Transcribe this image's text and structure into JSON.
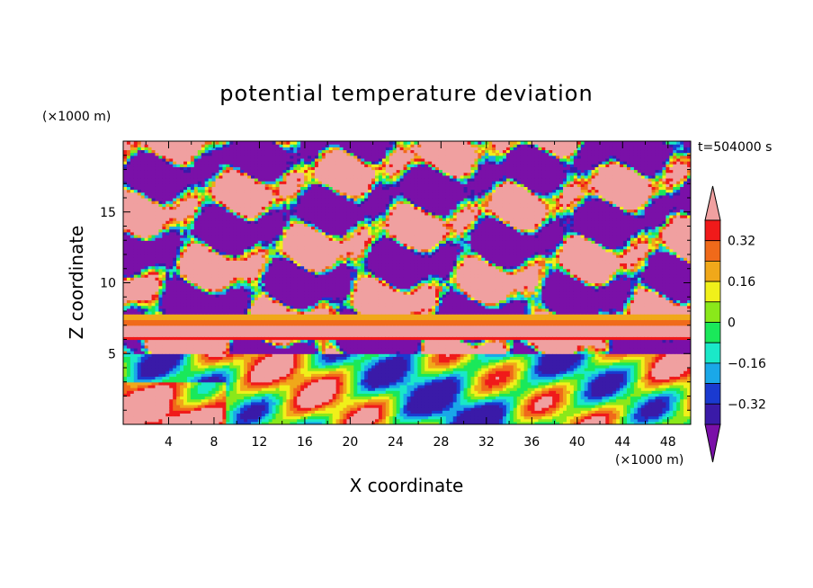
{
  "chart_data": {
    "type": "heatmap",
    "title": "potential temperature deviation",
    "xlabel": "X coordinate",
    "ylabel": "Z coordinate",
    "x_unit": "(×1000 m)",
    "y_unit": "(×1000 m)",
    "time_label": "t=504000 s",
    "xlim": [
      0,
      50
    ],
    "ylim": [
      0,
      20
    ],
    "x_ticks": [
      "4",
      "8",
      "12",
      "16",
      "20",
      "24",
      "28",
      "32",
      "36",
      "40",
      "44",
      "48"
    ],
    "y_ticks": [
      "5",
      "10",
      "15"
    ],
    "colorbar": {
      "tick_labels": [
        "0.32",
        "0.16",
        "0",
        "-0.16",
        "-0.32"
      ],
      "colors": [
        "#7a10a8",
        "#3a1aa8",
        "#1a3ad0",
        "#1aa8e8",
        "#1ae8c8",
        "#1ae85a",
        "#8ae81a",
        "#f0f01a",
        "#f0a81a",
        "#f06a1a",
        "#f01a1a",
        "#f0a0a0"
      ]
    },
    "features": {
      "stable_band_z": [
        6.0,
        7.8
      ],
      "upper_layer_z": [
        5.0,
        20.0
      ],
      "lower_layer_z": [
        0.0,
        5.0
      ]
    }
  }
}
